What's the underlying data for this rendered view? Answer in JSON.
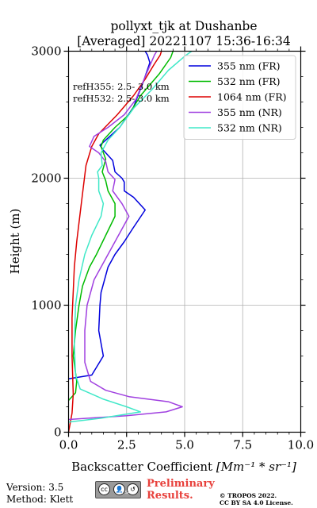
{
  "chart_data": {
    "type": "line",
    "title": "pollyxt_tjk at Dushanbe",
    "subtitle": "[Averaged] 20221107 15:36-16:34",
    "xlabel_text": "Backscatter Coefficient ",
    "xlabel_unit": "[Mm⁻¹ * sr⁻¹]",
    "ylabel": "Height (m)",
    "xlim": [
      0,
      10
    ],
    "ylim": [
      0,
      3000
    ],
    "x_ticks": [
      "0.0",
      "2.5",
      "5.0",
      "7.5",
      "10.0"
    ],
    "y_ticks": [
      "0",
      "1000",
      "2000",
      "3000"
    ],
    "grid": true,
    "legend_position": "top-right",
    "annotations": [
      "refH355:  2.5- 3.0 km",
      "refH532:  2.5- 3.0 km"
    ],
    "series": [
      {
        "name": "355 nm (FR)",
        "color": "#0000dd",
        "points": [
          [
            0.0,
            420
          ],
          [
            1.0,
            450
          ],
          [
            1.5,
            600
          ],
          [
            1.3,
            800
          ],
          [
            1.35,
            1000
          ],
          [
            1.4,
            1100
          ],
          [
            1.55,
            1200
          ],
          [
            1.7,
            1300
          ],
          [
            2.0,
            1400
          ],
          [
            2.4,
            1500
          ],
          [
            2.75,
            1600
          ],
          [
            3.3,
            1750
          ],
          [
            2.8,
            1850
          ],
          [
            2.4,
            1900
          ],
          [
            2.4,
            1970
          ],
          [
            2.3,
            2000
          ],
          [
            2.0,
            2050
          ],
          [
            1.9,
            2140
          ],
          [
            1.5,
            2220
          ],
          [
            1.35,
            2260
          ],
          [
            1.6,
            2300
          ],
          [
            2.2,
            2400
          ],
          [
            2.8,
            2560
          ],
          [
            3.2,
            2750
          ],
          [
            3.5,
            2910
          ],
          [
            3.4,
            2970
          ],
          [
            3.3,
            3000
          ]
        ]
      },
      {
        "name": "532 nm (FR)",
        "color": "#00bb00",
        "points": [
          [
            0.0,
            250
          ],
          [
            0.3,
            310
          ],
          [
            0.35,
            400
          ],
          [
            0.2,
            600
          ],
          [
            0.3,
            800
          ],
          [
            0.45,
            1000
          ],
          [
            0.6,
            1150
          ],
          [
            0.9,
            1300
          ],
          [
            1.2,
            1400
          ],
          [
            1.6,
            1550
          ],
          [
            2.0,
            1700
          ],
          [
            2.0,
            1800
          ],
          [
            1.7,
            1900
          ],
          [
            1.6,
            1980
          ],
          [
            1.45,
            2050
          ],
          [
            1.6,
            2150
          ],
          [
            1.4,
            2250
          ],
          [
            1.5,
            2300
          ],
          [
            2.0,
            2400
          ],
          [
            2.6,
            2500
          ],
          [
            3.1,
            2650
          ],
          [
            3.9,
            2820
          ],
          [
            4.4,
            2950
          ],
          [
            4.5,
            3000
          ]
        ]
      },
      {
        "name": "1064 nm (FR)",
        "color": "#dd0000",
        "points": [
          [
            0.0,
            0
          ],
          [
            0.15,
            150
          ],
          [
            0.2,
            300
          ],
          [
            0.15,
            600
          ],
          [
            0.15,
            900
          ],
          [
            0.25,
            1300
          ],
          [
            0.35,
            1500
          ],
          [
            0.55,
            1800
          ],
          [
            0.75,
            2100
          ],
          [
            1.0,
            2250
          ],
          [
            1.3,
            2350
          ],
          [
            2.1,
            2500
          ],
          [
            2.8,
            2650
          ],
          [
            3.3,
            2780
          ],
          [
            3.7,
            2900
          ],
          [
            3.95,
            2970
          ],
          [
            4.0,
            3000
          ]
        ]
      },
      {
        "name": "355 nm (NR)",
        "color": "#a040e0",
        "points": [
          [
            0.0,
            100
          ],
          [
            2.5,
            130
          ],
          [
            4.2,
            160
          ],
          [
            4.9,
            200
          ],
          [
            4.3,
            240
          ],
          [
            2.6,
            280
          ],
          [
            1.6,
            330
          ],
          [
            0.95,
            400
          ],
          [
            0.7,
            550
          ],
          [
            0.7,
            800
          ],
          [
            0.8,
            1000
          ],
          [
            1.1,
            1200
          ],
          [
            1.7,
            1400
          ],
          [
            2.3,
            1600
          ],
          [
            2.6,
            1700
          ],
          [
            2.3,
            1800
          ],
          [
            1.9,
            1900
          ],
          [
            2.0,
            1990
          ],
          [
            1.7,
            2050
          ],
          [
            1.6,
            2130
          ],
          [
            1.3,
            2200
          ],
          [
            0.9,
            2250
          ],
          [
            1.1,
            2330
          ],
          [
            1.7,
            2400
          ],
          [
            2.4,
            2500
          ],
          [
            2.9,
            2620
          ],
          [
            3.3,
            2800
          ],
          [
            3.7,
            2970
          ],
          [
            3.8,
            3000
          ]
        ]
      },
      {
        "name": "532 nm (NR)",
        "color": "#40e8c8",
        "points": [
          [
            0.0,
            80
          ],
          [
            1.4,
            110
          ],
          [
            3.1,
            160
          ],
          [
            2.5,
            200
          ],
          [
            1.5,
            260
          ],
          [
            0.5,
            340
          ],
          [
            0.3,
            450
          ],
          [
            0.25,
            700
          ],
          [
            0.3,
            1000
          ],
          [
            0.45,
            1200
          ],
          [
            0.7,
            1400
          ],
          [
            1.0,
            1550
          ],
          [
            1.4,
            1700
          ],
          [
            1.5,
            1800
          ],
          [
            1.3,
            1900
          ],
          [
            1.3,
            2000
          ],
          [
            1.25,
            2050
          ],
          [
            1.45,
            2100
          ],
          [
            1.4,
            2200
          ],
          [
            1.7,
            2300
          ],
          [
            2.2,
            2400
          ],
          [
            2.8,
            2550
          ],
          [
            3.6,
            2700
          ],
          [
            4.3,
            2850
          ],
          [
            5.0,
            2960
          ],
          [
            5.3,
            3000
          ]
        ]
      }
    ]
  },
  "footer": {
    "version": "Version: 3.5",
    "method": "Method: Klett",
    "preliminary_1": "Preliminary",
    "preliminary_2": "Results.",
    "copyright_1": "© TROPOS 2022.",
    "copyright_2": "CC BY SA 4.0 License.",
    "cc_badge_text": "BY   SA"
  }
}
